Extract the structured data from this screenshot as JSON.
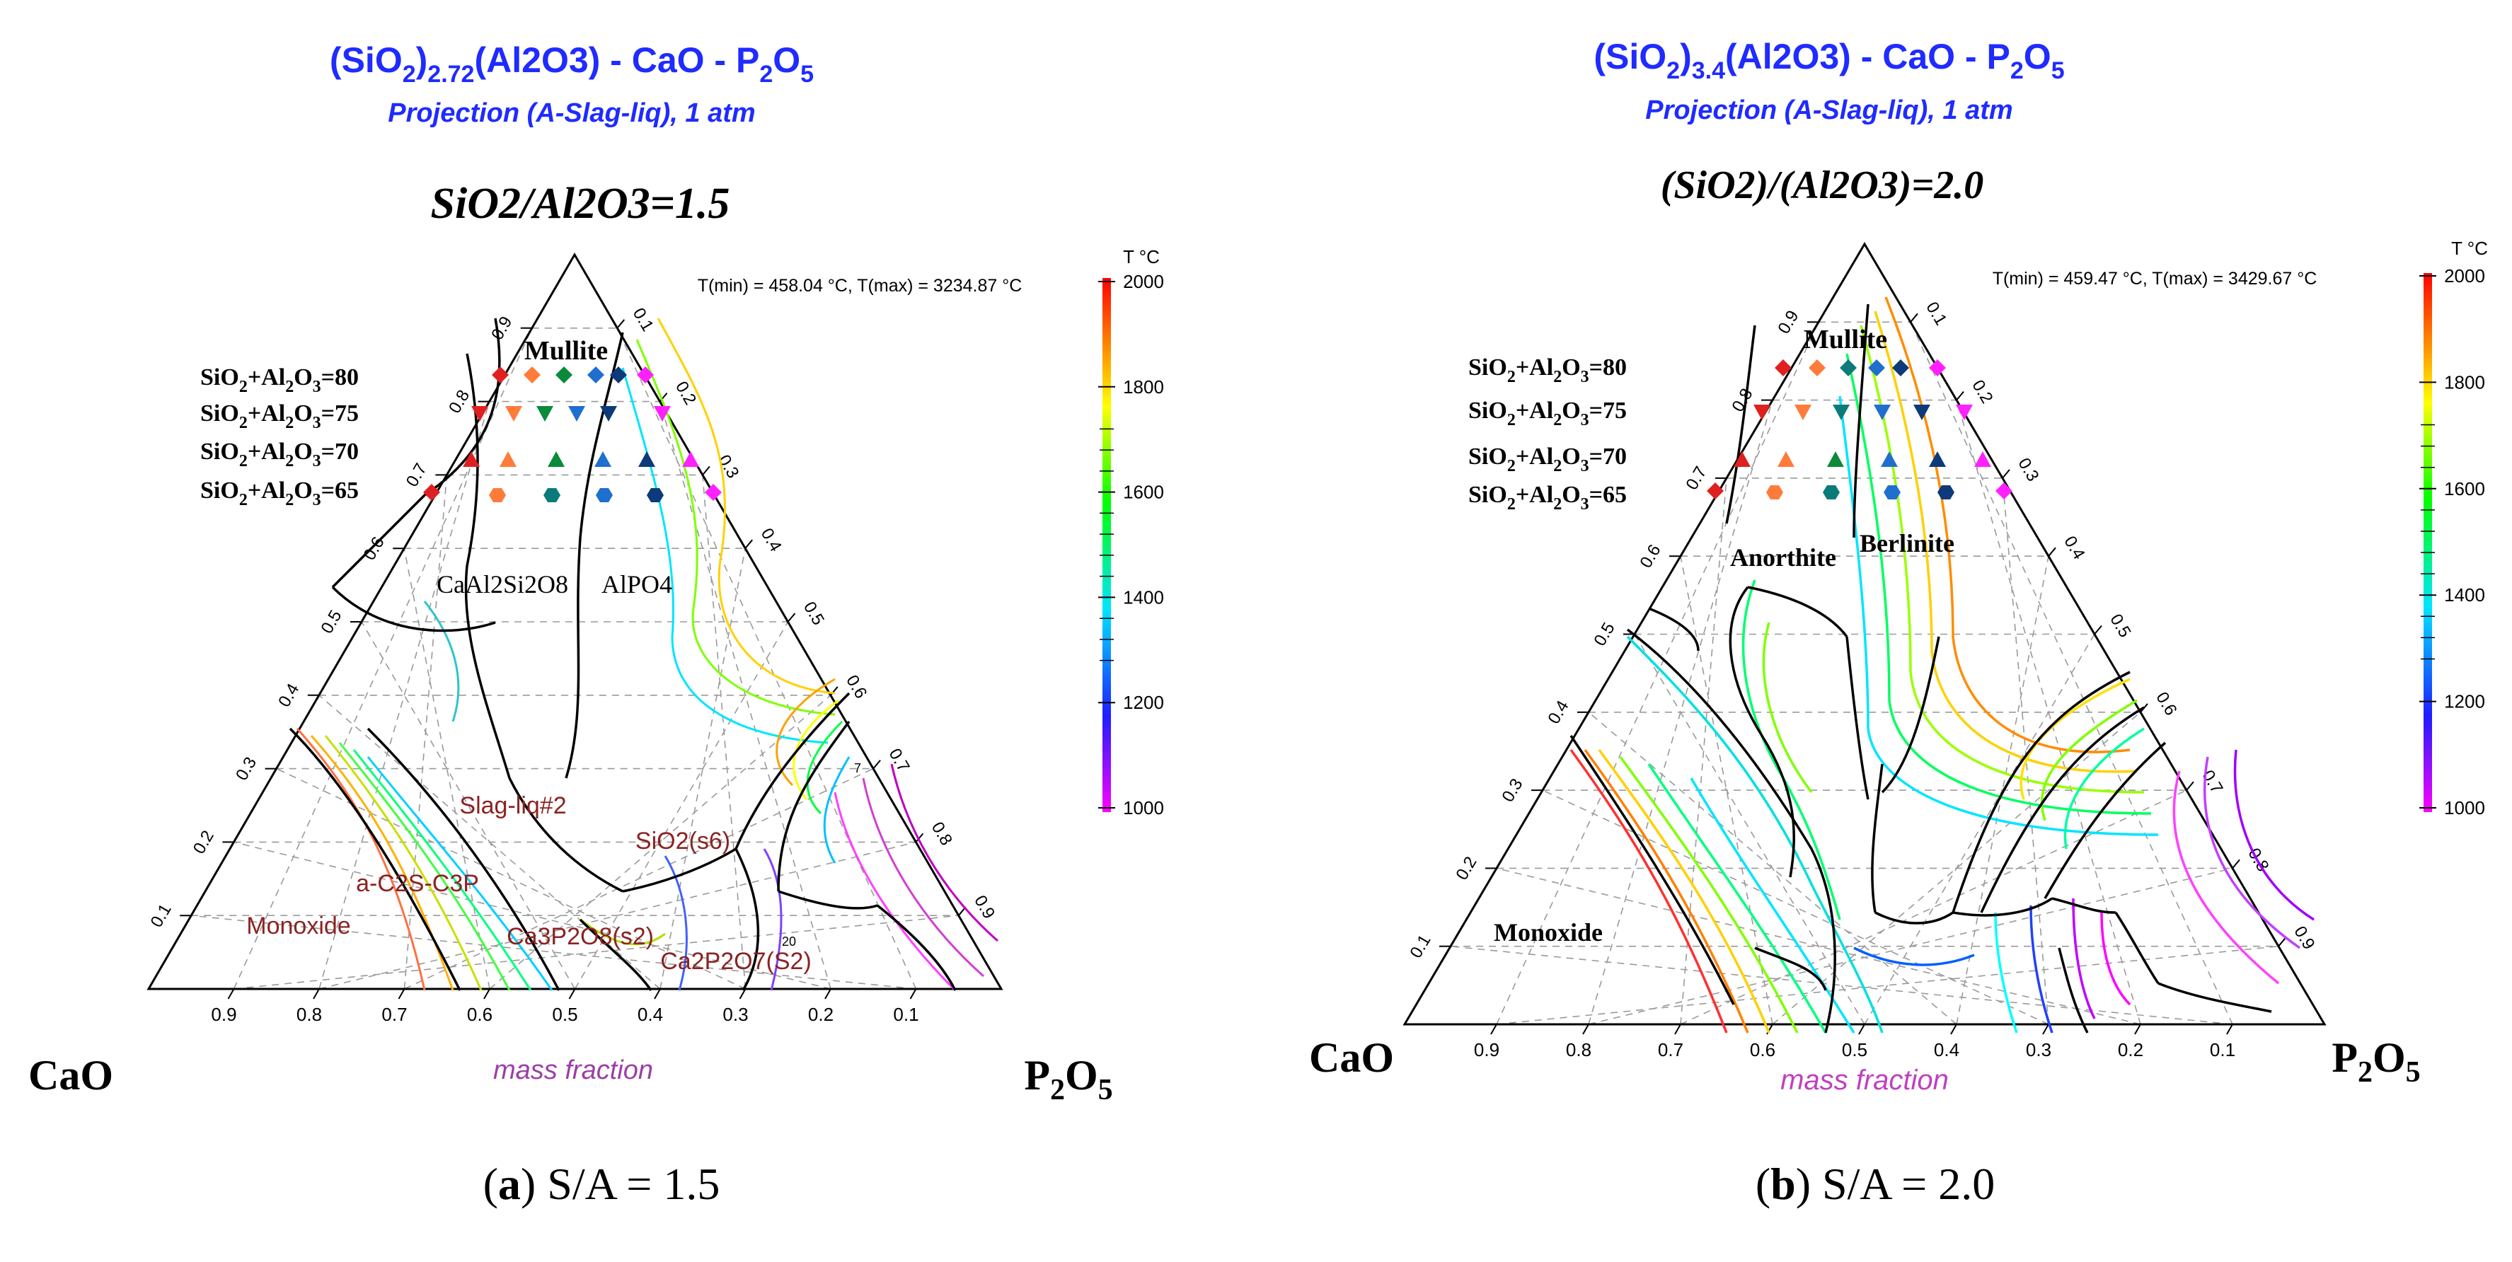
{
  "colors": {
    "title_blue": "#1f2bff",
    "label_purple": "#9b3fa6",
    "phase_maroon": "#8b2323",
    "black": "#000000",
    "grid_gray": "#8c8c8c"
  },
  "colorbar": {
    "unit": "T °C",
    "ticks": [
      "2000",
      "1800",
      "1600",
      "1400",
      "1200",
      "1000"
    ],
    "range_c": [
      1000,
      2000
    ],
    "stops": [
      "#ff00ff",
      "#1e1eff",
      "#00e5ff",
      "#00ff00",
      "#ffff00",
      "#ff8000",
      "#ff0000"
    ]
  },
  "diagrams": [
    {
      "id": "a",
      "title_part1": "(SiO",
      "title_sub1": "2",
      "title_sub2": "2.72",
      "title_part2": "(Al2O3) - CaO - P",
      "title_sub3": "2",
      "title_part3": "O",
      "title_sub4": "5",
      "subtitle": "Projection (A-Slag-liq), 1 atm",
      "ratio_text": "SiO2/Al2O3=1.5",
      "tmin_tmax": "T(min) = 458.04 °C, T(max) = 3234.87 °C",
      "corner_left": "CaO",
      "corner_right": "P2O5",
      "axis_caption": "mass fraction",
      "bottom_ticks": [
        "0.9",
        "0.8",
        "0.7",
        "0.6",
        "0.5",
        "0.4",
        "0.3",
        "0.2",
        "0.1"
      ],
      "left_ticks": [
        "0.1",
        "0.2",
        "0.3",
        "0.4",
        "0.5",
        "0.6",
        "0.7",
        "0.8",
        "0.9"
      ],
      "right_ticks": [
        "0.1",
        "0.2",
        "0.3",
        "0.4",
        "0.5",
        "0.6",
        "0.7",
        "0.8",
        "0.9"
      ],
      "sum_labels": [
        "SiO2+Al2O3=80",
        "SiO2+Al2O3=75",
        "SiO2+Al2O3=70",
        "SiO2+Al2O3=65"
      ],
      "phase_labels": [
        "Mullite",
        "CaAl2Si2O8",
        "AlPO4",
        "Slag-liq#2",
        "SiO2(s6)",
        "a-C2S-C3P",
        "Monoxide",
        "Ca3P2O8(s2)",
        "Ca2P2O7(S2)"
      ],
      "small_marks": [
        "20",
        "7"
      ],
      "caption_letter": "a",
      "caption_rest": " S/A = 1.5"
    },
    {
      "id": "b",
      "title_part1": "(SiO",
      "title_sub1": "2",
      "title_sub2": "3.4",
      "title_part2": "(Al2O3) - CaO - P",
      "title_sub3": "2",
      "title_part3": "O",
      "title_sub4": "5",
      "subtitle": "Projection (A-Slag-liq), 1 atm",
      "ratio_text": "(SiO2)/(Al2O3)=2.0",
      "tmin_tmax": "T(min) = 459.47 °C, T(max) = 3429.67 °C",
      "corner_left": "CaO",
      "corner_right": "P2O5",
      "axis_caption": "mass fraction",
      "bottom_ticks": [
        "0.9",
        "0.8",
        "0.7",
        "0.6",
        "0.5",
        "0.4",
        "0.3",
        "0.2",
        "0.1"
      ],
      "left_ticks": [
        "0.1",
        "0.2",
        "0.3",
        "0.4",
        "0.5",
        "0.6",
        "0.7",
        "0.8",
        "0.9"
      ],
      "right_ticks": [
        "0.1",
        "0.2",
        "0.3",
        "0.4",
        "0.5",
        "0.6",
        "0.7",
        "0.8",
        "0.9"
      ],
      "sum_labels": [
        "SiO2+Al2O3=80",
        "SiO2+Al2O3=75",
        "SiO2+Al2O3=70",
        "SiO2+Al2O3=65"
      ],
      "phase_labels": [
        "Mullite",
        "Anorthite",
        "Berlinite",
        "Monoxide"
      ],
      "caption_letter": "b",
      "caption_rest": " S/A = 2.0"
    }
  ]
}
